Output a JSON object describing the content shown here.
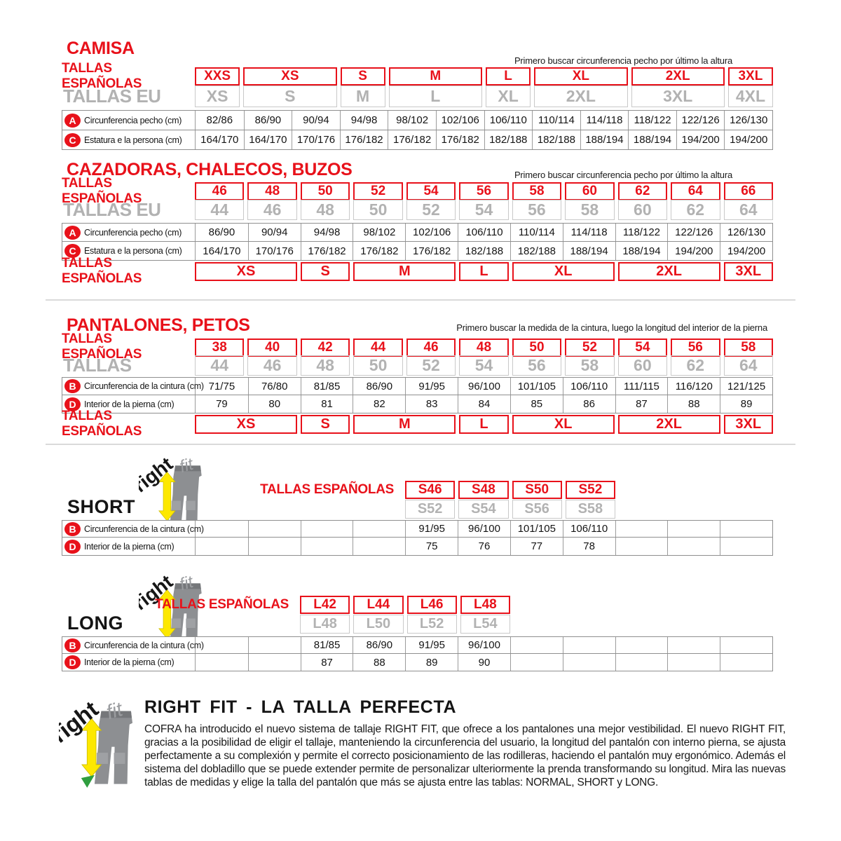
{
  "colors": {
    "red": "#e8111a",
    "gray_text": "#b2b2b2",
    "yellow": "#fde800",
    "green": "#2f9e3f"
  },
  "logo": {
    "right": "right",
    "fit": "fit"
  },
  "letters": {
    "a": "A",
    "b": "B",
    "c": "C",
    "d": "D"
  },
  "labels": {
    "tallas_espanolas": "TALLAS ESPAÑOLAS",
    "tallas_eu": "TALLAS EU",
    "tallas": "TALLAS"
  },
  "measures": {
    "pecho": "Circunferencia pecho (cm)",
    "estatura": "Estatura e la persona (cm)",
    "cintura": "Circunferencia de la cintura (cm)",
    "pierna": "Interior de la pierna (cm)"
  },
  "notes": {
    "pecho": "Primero buscar circunferencia pecho por último la altura",
    "cintura": "Primero buscar la medida de la cintura, luego la longitud del interior de la pierna"
  },
  "camisa": {
    "title": "CAMISA",
    "es": [
      {
        "label": "XXS",
        "span": 1
      },
      {
        "label": "XS",
        "span": 2
      },
      {
        "label": "S",
        "span": 1
      },
      {
        "label": "M",
        "span": 2
      },
      {
        "label": "L",
        "span": 1
      },
      {
        "label": "XL",
        "span": 2
      },
      {
        "label": "2XL",
        "span": 2
      },
      {
        "label": "3XL",
        "span": 1
      }
    ],
    "eu": [
      {
        "label": "XS",
        "span": 1
      },
      {
        "label": "S",
        "span": 2
      },
      {
        "label": "M",
        "span": 1
      },
      {
        "label": "L",
        "span": 2
      },
      {
        "label": "XL",
        "span": 1
      },
      {
        "label": "2XL",
        "span": 2
      },
      {
        "label": "3XL",
        "span": 2
      },
      {
        "label": "4XL",
        "span": 1
      }
    ],
    "a": [
      "82/86",
      "86/90",
      "90/94",
      "94/98",
      "98/102",
      "102/106",
      "106/110",
      "110/114",
      "114/118",
      "118/122",
      "122/126",
      "126/130"
    ],
    "c": [
      "164/170",
      "164/170",
      "170/176",
      "176/182",
      "176/182",
      "176/182",
      "182/188",
      "182/188",
      "188/194",
      "188/194",
      "194/200",
      "194/200"
    ]
  },
  "cazadoras": {
    "title": "CAZADORAS, CHALECOS, BUZOS",
    "es": [
      "46",
      "48",
      "50",
      "52",
      "54",
      "56",
      "58",
      "60",
      "62",
      "64",
      "66"
    ],
    "eu": [
      "44",
      "46",
      "48",
      "50",
      "52",
      "54",
      "56",
      "58",
      "60",
      "62",
      "64"
    ],
    "a": [
      "86/90",
      "90/94",
      "94/98",
      "98/102",
      "102/106",
      "106/110",
      "110/114",
      "114/118",
      "118/122",
      "122/126",
      "126/130"
    ],
    "c": [
      "164/170",
      "170/176",
      "176/182",
      "176/182",
      "176/182",
      "182/188",
      "182/188",
      "188/194",
      "188/194",
      "194/200",
      "194/200"
    ],
    "es_bottom": [
      {
        "label": "XS",
        "span": 2
      },
      {
        "label": "S",
        "span": 1
      },
      {
        "label": "M",
        "span": 2
      },
      {
        "label": "L",
        "span": 1
      },
      {
        "label": "XL",
        "span": 2
      },
      {
        "label": "2XL",
        "span": 2
      },
      {
        "label": "3XL",
        "span": 1
      }
    ]
  },
  "pantalones": {
    "title": "PANTALONES, PETOS",
    "es": [
      "38",
      "40",
      "42",
      "44",
      "46",
      "48",
      "50",
      "52",
      "54",
      "56",
      "58"
    ],
    "eu": [
      "44",
      "46",
      "48",
      "50",
      "52",
      "54",
      "56",
      "58",
      "60",
      "62",
      "64"
    ],
    "b": [
      "71/75",
      "76/80",
      "81/85",
      "86/90",
      "91/95",
      "96/100",
      "101/105",
      "106/110",
      "111/115",
      "116/120",
      "121/125"
    ],
    "d": [
      "79",
      "80",
      "81",
      "82",
      "83",
      "84",
      "85",
      "86",
      "87",
      "88",
      "89"
    ],
    "es_bottom": [
      {
        "label": "XS",
        "span": 2
      },
      {
        "label": "S",
        "span": 1
      },
      {
        "label": "M",
        "span": 2
      },
      {
        "label": "L",
        "span": 1
      },
      {
        "label": "XL",
        "span": 2
      },
      {
        "label": "2XL",
        "span": 2
      },
      {
        "label": "3XL",
        "span": 1
      }
    ]
  },
  "short": {
    "title": "SHORT",
    "es": [
      "S46",
      "S48",
      "S50",
      "S52"
    ],
    "eu": [
      "S52",
      "S54",
      "S56",
      "S58"
    ],
    "b": [
      "",
      "",
      "",
      "",
      "91/95",
      "96/100",
      "101/105",
      "106/110",
      "",
      "",
      ""
    ],
    "d": [
      "",
      "",
      "",
      "",
      "75",
      "76",
      "77",
      "78",
      "",
      "",
      ""
    ]
  },
  "long": {
    "title": "LONG",
    "es": [
      "L42",
      "L44",
      "L46",
      "L48"
    ],
    "eu": [
      "L48",
      "L50",
      "L52",
      "L54"
    ],
    "b": [
      "",
      "",
      "81/85",
      "86/90",
      "91/95",
      "96/100",
      "",
      "",
      "",
      "",
      ""
    ],
    "d": [
      "",
      "",
      "87",
      "88",
      "89",
      "90",
      "",
      "",
      "",
      "",
      ""
    ]
  },
  "rightfit": {
    "heading": "RIGHT FIT - LA TALLA PERFECTA",
    "body": "COFRA ha introducido el nuevo sistema de tallaje RIGHT FIT, que ofrece a los pantalones una mejor vestibilidad. El nuevo RIGHT FIT, gracias a la posibilidad de eligir el tallaje, manteniendo la circunferencia del usuario, la longitud del pantalón con interno pierna, se ajusta perfectamente a su complexión y permite el correcto posicionamiento de las rodilleras, haciendo el pantalón muy ergonómico. Además el sistema del dobladillo que se puede extender permite de personalizar ulteriormente la prenda transformando su longitud. Mira las nuevas tablas de medidas y elige la talla del pantalón que más se ajusta entre las tablas: NORMAL, SHORT y LONG."
  }
}
